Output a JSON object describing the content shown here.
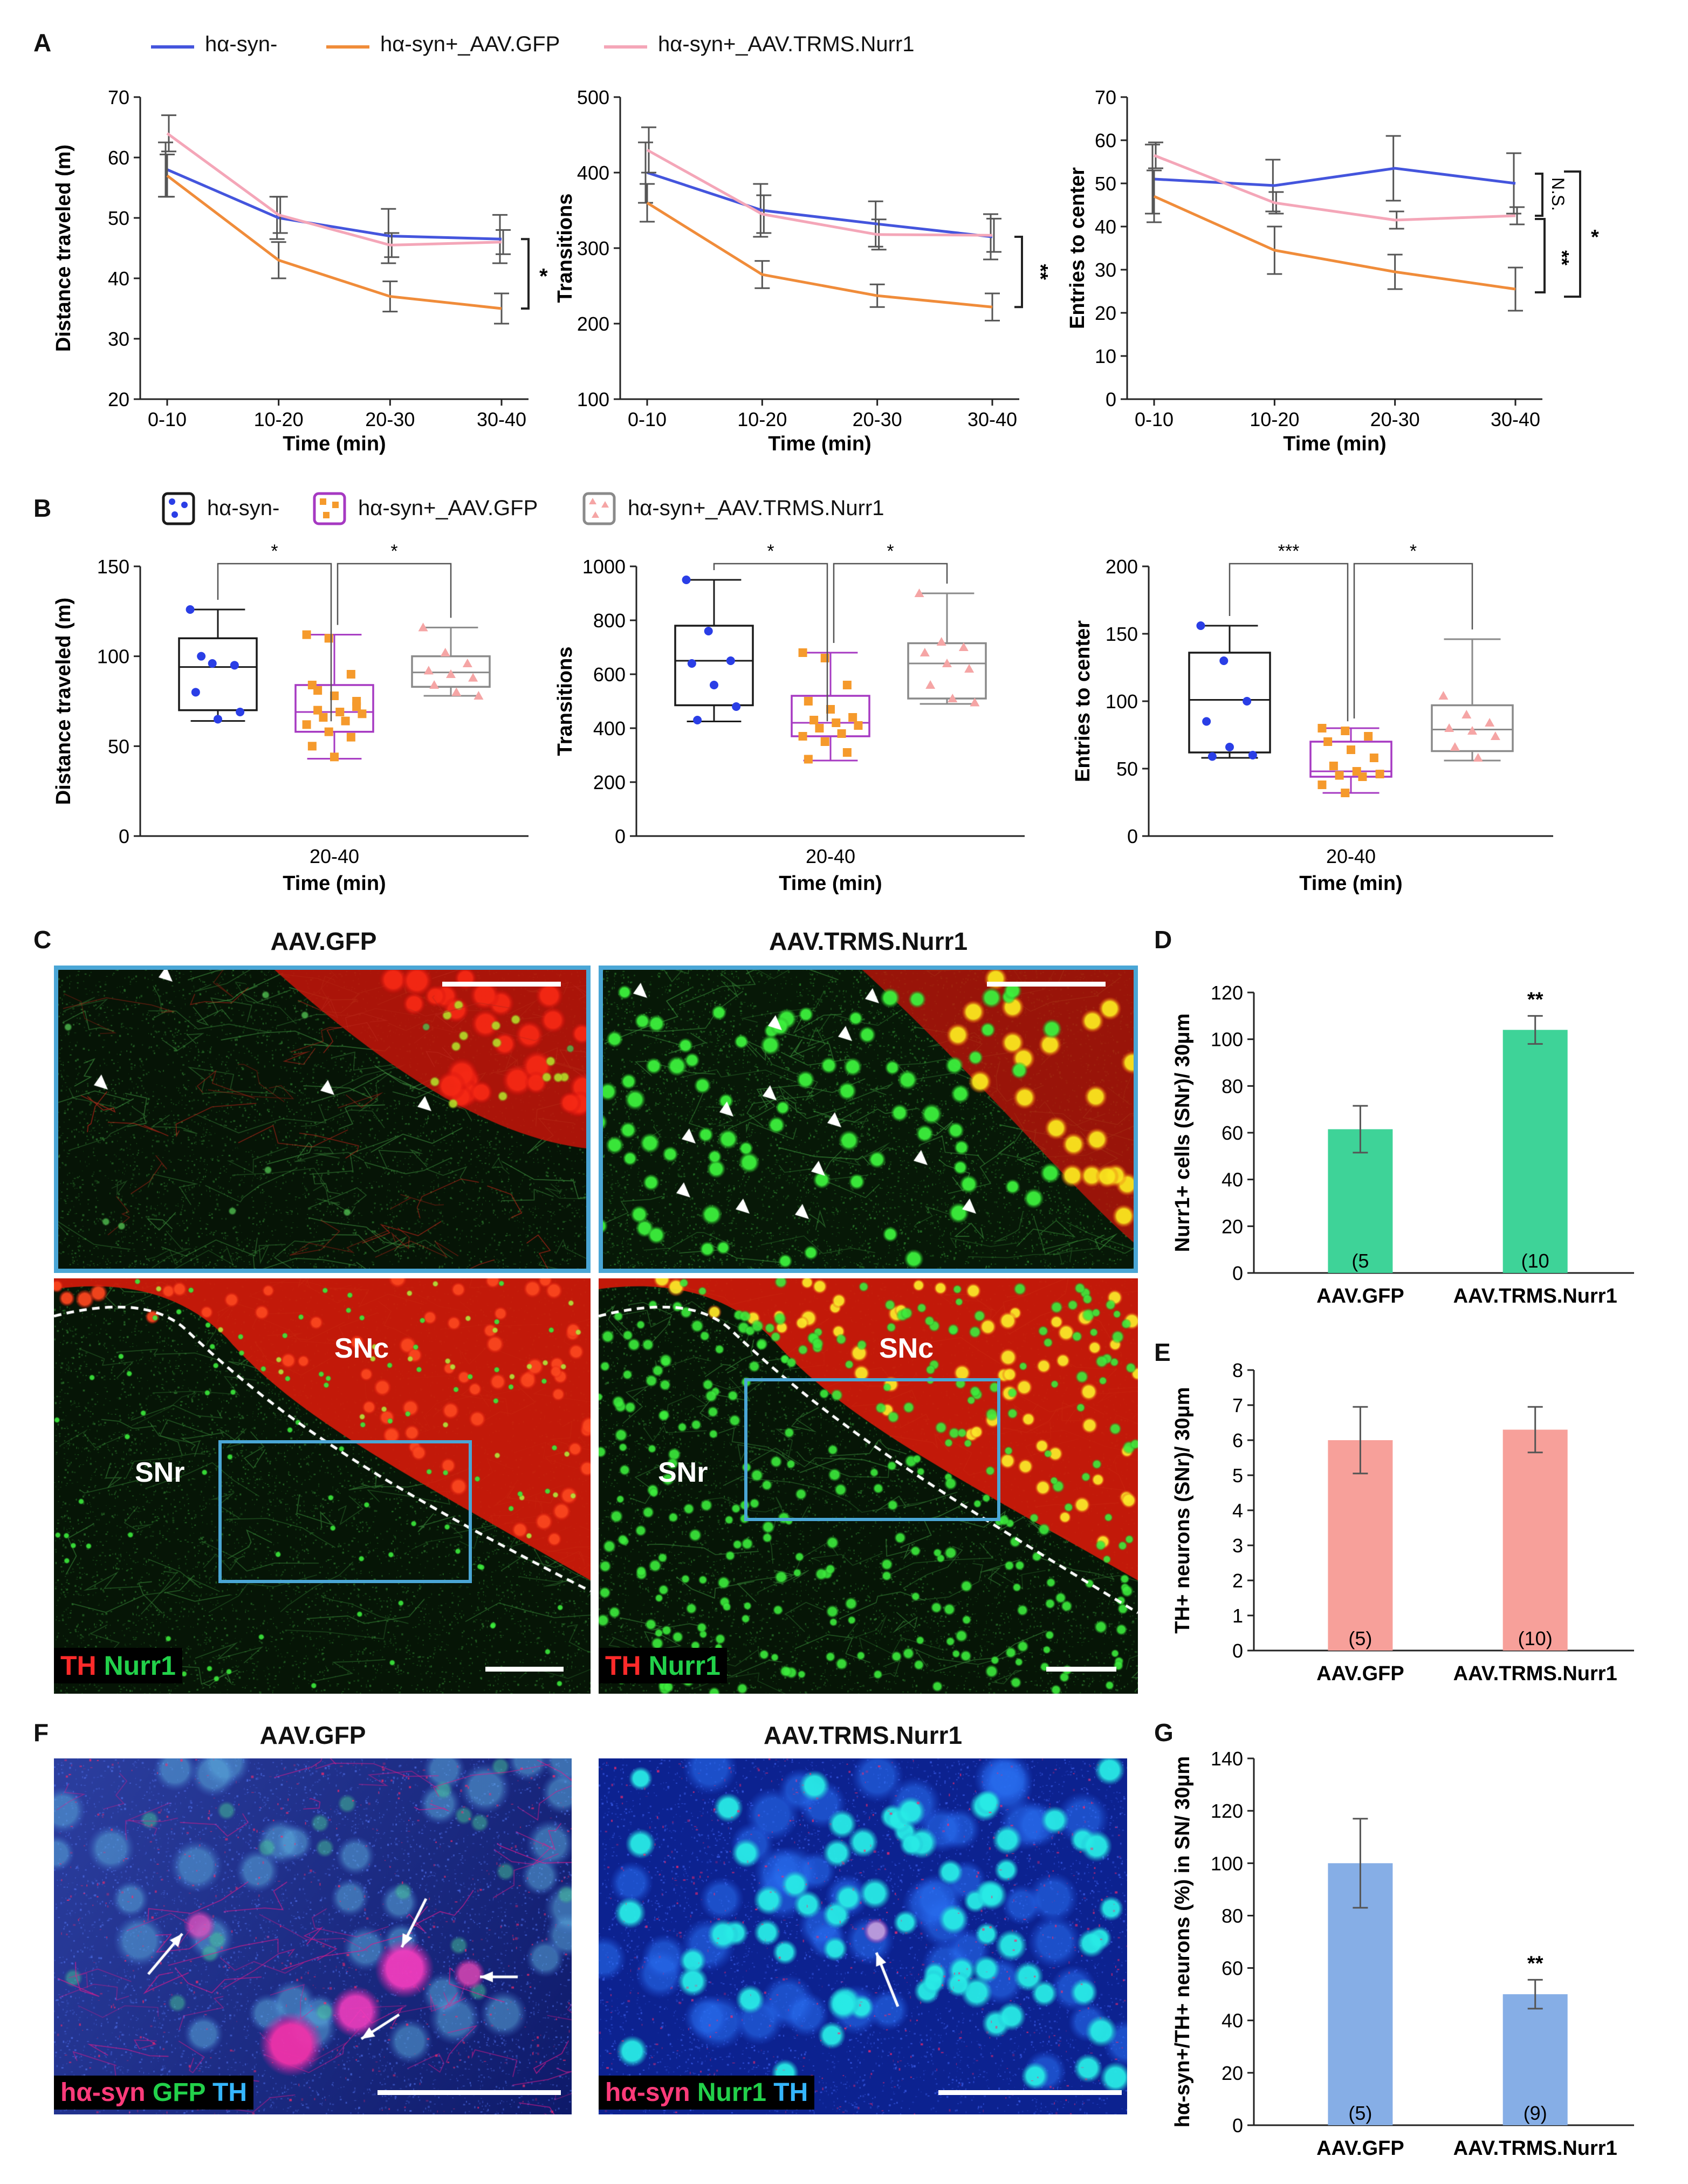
{
  "panels": {
    "A": "A",
    "B": "B",
    "C": "C",
    "D": "D",
    "E": "E",
    "F": "F",
    "G": "G"
  },
  "colors": {
    "syn_neg": "#4455dd",
    "gfp": "#f08c3a",
    "nurr1": "#f4a6b8",
    "box_syn_neg": "#1a1a1a",
    "box_gfp": "#a639c2",
    "box_nurr1": "#8a8a8a",
    "dot_syn_neg": "#2a3ee6",
    "dot_gfp": "#f59a2c",
    "dot_nurr1": "#f5a5a5",
    "bar_D": "#3ed398",
    "bar_E": "#f7a09a",
    "bar_G": "#86aee6",
    "errbar": "#555555",
    "frame": "#4aa6d6"
  },
  "legendA": [
    "hα-syn-",
    "hα-syn+_AAV.GFP",
    "hα-syn+_AAV.TRMS.Nurr1"
  ],
  "legendB": [
    "hα-syn-",
    "hα-syn+_AAV.GFP",
    "hα-syn+_AAV.TRMS.Nurr1"
  ],
  "chart_data": [
    {
      "id": "A1",
      "type": "line",
      "xlabel": "Time (min)",
      "ylabel": "Distance traveled (m)",
      "categories": [
        "0-10",
        "10-20",
        "20-30",
        "30-40"
      ],
      "yticks": [
        20,
        30,
        40,
        50,
        60,
        70
      ],
      "ylim": [
        20,
        70
      ],
      "series": [
        {
          "name": "hα-syn-",
          "values": [
            58,
            50,
            47,
            46.5
          ],
          "err": [
            4.5,
            3.5,
            4.5,
            4
          ]
        },
        {
          "name": "hα-syn+_AAV.GFP",
          "values": [
            57,
            43,
            37,
            35
          ],
          "err": [
            3.5,
            3,
            2.5,
            2.5
          ]
        },
        {
          "name": "hα-syn+_AAV.TRMS.Nurr1",
          "values": [
            64,
            50.5,
            45.5,
            46
          ],
          "err": [
            3,
            3,
            2,
            2
          ]
        }
      ],
      "annotations": [
        {
          "text": "*",
          "between": [
            0,
            1
          ],
          "at": 3
        }
      ]
    },
    {
      "id": "A2",
      "type": "line",
      "xlabel": "Time (min)",
      "ylabel": "Transitions",
      "categories": [
        "0-10",
        "10-20",
        "20-30",
        "30-40"
      ],
      "yticks": [
        100,
        200,
        300,
        400,
        500
      ],
      "ylim": [
        100,
        500
      ],
      "series": [
        {
          "name": "hα-syn-",
          "values": [
            400,
            350,
            332,
            315
          ],
          "err": [
            40,
            35,
            30,
            30
          ]
        },
        {
          "name": "hα-syn+_AAV.GFP",
          "values": [
            360,
            265,
            237,
            222
          ],
          "err": [
            25,
            18,
            15,
            18
          ]
        },
        {
          "name": "hα-syn+_AAV.TRMS.Nurr1",
          "values": [
            430,
            345,
            318,
            317
          ],
          "err": [
            30,
            25,
            20,
            22
          ]
        }
      ],
      "annotations": [
        {
          "text": "**",
          "between": [
            0,
            1
          ],
          "at": 3
        }
      ]
    },
    {
      "id": "A3",
      "type": "line",
      "xlabel": "Time (min)",
      "ylabel": "Entries to center",
      "categories": [
        "0-10",
        "10-20",
        "20-30",
        "30-40"
      ],
      "yticks": [
        0,
        10,
        20,
        30,
        40,
        50,
        60,
        70
      ],
      "ylim": [
        0,
        70
      ],
      "series": [
        {
          "name": "hα-syn-",
          "values": [
            51,
            49.5,
            53.5,
            50
          ],
          "err": [
            8,
            6,
            7.5,
            7
          ]
        },
        {
          "name": "hα-syn+_AAV.GFP",
          "values": [
            47,
            34.5,
            29.5,
            25.5
          ],
          "err": [
            6,
            5.5,
            4,
            5
          ]
        },
        {
          "name": "hα-syn+_AAV.TRMS.Nurr1",
          "values": [
            56.5,
            45.5,
            41.5,
            42.5
          ],
          "err": [
            3,
            2.5,
            2,
            2
          ]
        }
      ],
      "annotations": [
        {
          "text": "N.S.",
          "pair": [
            0,
            2
          ]
        },
        {
          "text": "**",
          "pair": [
            2,
            1
          ]
        },
        {
          "text": "*",
          "pair": [
            0,
            1
          ]
        }
      ]
    },
    {
      "id": "B1",
      "type": "box",
      "xlabel": "Time (min)",
      "ylabel": "Distance traveled (m)",
      "xtick": "20-40",
      "yticks": [
        0,
        50,
        100,
        150
      ],
      "ylim": [
        0,
        150
      ],
      "groups": [
        {
          "name": "hα-syn-",
          "whisker": [
            64,
            126
          ],
          "box": [
            70,
            110
          ],
          "median": 94,
          "points": [
            126,
            96,
            95,
            80,
            65,
            69,
            100
          ]
        },
        {
          "name": "hα-syn+_AAV.GFP",
          "whisker": [
            43,
            112
          ],
          "box": [
            58,
            84
          ],
          "median": 69,
          "points": [
            112,
            110,
            90,
            84,
            78,
            72,
            70,
            69,
            68,
            66,
            64,
            62,
            58,
            55,
            50,
            44,
            75,
            81
          ]
        },
        {
          "name": "hα-syn+_AAV.TRMS.Nurr1",
          "whisker": [
            78,
            116
          ],
          "box": [
            83,
            100
          ],
          "median": 91,
          "points": [
            116,
            102,
            96,
            92,
            90,
            88,
            84,
            80,
            78
          ]
        }
      ],
      "significance": [
        {
          "pair": [
            0,
            1
          ],
          "text": "*"
        },
        {
          "pair": [
            1,
            2
          ],
          "text": "*"
        }
      ]
    },
    {
      "id": "B2",
      "type": "box",
      "xlabel": "Time (min)",
      "ylabel": "Transitions",
      "xtick": "20-40",
      "yticks": [
        0,
        200,
        400,
        600,
        800,
        1000
      ],
      "ylim": [
        0,
        1000
      ],
      "groups": [
        {
          "name": "hα-syn-",
          "whisker": [
            425,
            950
          ],
          "box": [
            485,
            780
          ],
          "median": 650,
          "points": [
            950,
            760,
            650,
            640,
            560,
            480,
            430
          ]
        },
        {
          "name": "hα-syn+_AAV.GFP",
          "whisker": [
            280,
            680
          ],
          "box": [
            370,
            520
          ],
          "median": 420,
          "points": [
            680,
            660,
            560,
            500,
            470,
            440,
            430,
            420,
            410,
            400,
            380,
            370,
            350,
            310,
            285
          ]
        },
        {
          "name": "hα-syn+_AAV.TRMS.Nurr1",
          "whisker": [
            490,
            900
          ],
          "box": [
            510,
            715
          ],
          "median": 640,
          "points": [
            900,
            720,
            700,
            680,
            640,
            620,
            560,
            510,
            495
          ]
        }
      ],
      "significance": [
        {
          "pair": [
            0,
            1
          ],
          "text": "*"
        },
        {
          "pair": [
            1,
            2
          ],
          "text": "*"
        }
      ]
    },
    {
      "id": "B3",
      "type": "box",
      "xlabel": "Time (min)",
      "ylabel": "Entries to center",
      "xtick": "20-40",
      "yticks": [
        0,
        50,
        100,
        150,
        200
      ],
      "ylim": [
        0,
        200
      ],
      "groups": [
        {
          "name": "hα-syn-",
          "whisker": [
            58,
            156
          ],
          "box": [
            62,
            136
          ],
          "median": 101,
          "points": [
            156,
            130,
            100,
            85,
            66,
            60,
            59
          ]
        },
        {
          "name": "hα-syn+_AAV.GFP",
          "whisker": [
            32,
            80
          ],
          "box": [
            44,
            70
          ],
          "median": 48,
          "points": [
            80,
            78,
            74,
            70,
            64,
            58,
            52,
            48,
            46,
            45,
            44,
            38,
            32
          ]
        },
        {
          "name": "hα-syn+_AAV.TRMS.Nurr1",
          "whisker": [
            56,
            146
          ],
          "box": [
            63,
            97
          ],
          "median": 79,
          "points": [
            104,
            90,
            84,
            80,
            78,
            74,
            66,
            58
          ]
        }
      ],
      "significance": [
        {
          "pair": [
            0,
            1
          ],
          "text": "***"
        },
        {
          "pair": [
            1,
            2
          ],
          "text": "*"
        }
      ]
    },
    {
      "id": "D",
      "type": "bar",
      "ylabel": "Nurr1+ cells (SNr)/ 30μm",
      "categories": [
        "AAV.GFP",
        "AAV.TRMS.Nurr1"
      ],
      "values": [
        61.5,
        104
      ],
      "err": [
        10,
        6
      ],
      "n_labels": [
        "(5",
        "(10"
      ],
      "sig": [
        "",
        "**"
      ],
      "yticks": [
        0,
        20,
        40,
        60,
        80,
        100,
        120
      ],
      "ylim": [
        0,
        120
      ]
    },
    {
      "id": "E",
      "type": "bar",
      "ylabel": "TH+ neurons (SNr)/ 30μm",
      "categories": [
        "AAV.GFP",
        "AAV.TRMS.Nurr1"
      ],
      "values": [
        6,
        6.3
      ],
      "err": [
        0.95,
        0.65
      ],
      "n_labels": [
        "(5)",
        "(10)"
      ],
      "sig": [
        "",
        ""
      ],
      "yticks": [
        0,
        1,
        2,
        3,
        4,
        5,
        6,
        7,
        8
      ],
      "ylim": [
        0,
        8
      ]
    },
    {
      "id": "G",
      "type": "bar",
      "ylabel": "hα-syn+/TH+ neurons (%) in SN/ 30μm",
      "categories": [
        "AAV.GFP",
        "AAV.TRMS.Nurr1"
      ],
      "values": [
        100,
        50
      ],
      "err": [
        17,
        5.5
      ],
      "n_labels": [
        "(5)",
        "(9)"
      ],
      "sig": [
        "",
        "**"
      ],
      "yticks": [
        0,
        20,
        40,
        60,
        80,
        100,
        120,
        140
      ],
      "ylim": [
        0,
        140
      ]
    }
  ],
  "panelC": {
    "title_left": "AAV.GFP",
    "title_right": "AAV.TRMS.Nurr1",
    "snc": "SNc",
    "snr": "SNr",
    "chan_red": "TH",
    "chan_green": "Nurr1"
  },
  "panelF": {
    "title_left": "AAV.GFP",
    "title_right": "AAV.TRMS.Nurr1",
    "left_chan": [
      "hα-syn",
      "GFP",
      "TH"
    ],
    "right_chan": [
      "hα-syn",
      "Nurr1",
      "TH"
    ]
  }
}
